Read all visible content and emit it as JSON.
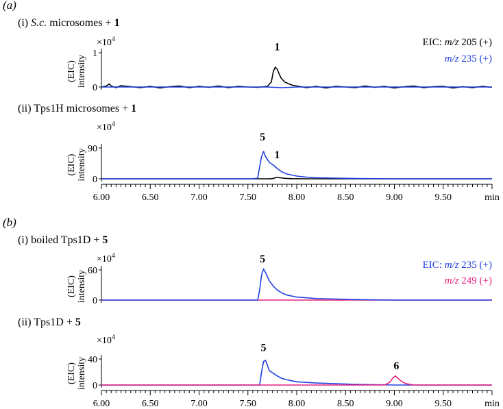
{
  "panels": [
    {
      "tag": "(a)",
      "subplots": [
        {
          "title_prefix": "(i) ",
          "title_italic": "S.c.",
          "title_rest": " microsomes + ",
          "title_bold": "1",
          "scale_text": "×10",
          "scale_exp": "4",
          "ylabel_top": "(EIC)",
          "ylabel_bottom": "intensity",
          "ytick_labels": [
            "1",
            "0"
          ],
          "legend": [
            {
              "prefix": "EIC: ",
              "mz": "m/z",
              "value": " 205 (+)",
              "color": "#000000"
            },
            {
              "prefix": "",
              "mz": "m/z",
              "value": " 235 (+)",
              "color": "#1f3fe0"
            }
          ],
          "annotations": [
            {
              "label": "1",
              "x": 7.8,
              "y": 1.07
            }
          ]
        },
        {
          "title_prefix": "(ii) Tps1H microsomes + ",
          "title_italic": "",
          "title_rest": "",
          "title_bold": "1",
          "scale_text": "×10",
          "scale_exp": "4",
          "ylabel_top": "(EIC)",
          "ylabel_bottom": "intensity",
          "ytick_labels": [
            "90",
            "0"
          ],
          "legend": [],
          "annotations": [
            {
              "label": "5",
              "x": 7.65,
              "y": 112
            },
            {
              "label": "1",
              "x": 7.8,
              "y": 60
            }
          ]
        }
      ]
    },
    {
      "tag": "(b)",
      "subplots": [
        {
          "title_prefix": "(i) boiled Tps1D + ",
          "title_italic": "",
          "title_rest": "",
          "title_bold": "5",
          "scale_text": "×10",
          "scale_exp": "4",
          "ylabel_top": "(EIC)",
          "ylabel_bottom": "intensity",
          "ytick_labels": [
            "60",
            "0"
          ],
          "legend": [
            {
              "prefix": "EIC: ",
              "mz": "m/z",
              "value": " 235 (+)",
              "color": "#1f3fe0"
            },
            {
              "prefix": "",
              "mz": "m/z",
              "value": " 249 (+)",
              "color": "#e8207c"
            }
          ],
          "annotations": [
            {
              "label": "5",
              "x": 7.65,
              "y": 75
            }
          ]
        },
        {
          "title_prefix": "(ii) Tps1D + ",
          "title_italic": "",
          "title_rest": "",
          "title_bold": "5",
          "scale_text": "×10",
          "scale_exp": "4",
          "ylabel_top": "(EIC)",
          "ylabel_bottom": "intensity",
          "ytick_labels": [
            "40",
            "0"
          ],
          "legend": [],
          "annotations": [
            {
              "label": "5",
              "x": 7.66,
              "y": 52
            },
            {
              "label": "6",
              "x": 9.02,
              "y": 24
            }
          ]
        }
      ]
    }
  ],
  "x_axis": {
    "tick_labels": [
      "6.00",
      "6.50",
      "7.00",
      "7.50",
      "8.00",
      "8.50",
      "9.00",
      "9.50"
    ],
    "unit": "min"
  },
  "chart_data": {
    "type": "line",
    "xlim": [
      6.0,
      10.0
    ],
    "x_unit": "min",
    "panels": [
      {
        "name": "(a)(i) S.c. microsomes + 1",
        "ylim": [
          -0.1,
          1.3
        ],
        "yticks": [
          0,
          1
        ],
        "series": [
          {
            "name": "m/z 205 (+)",
            "color": "#000000",
            "x": [
              6.0,
              6.05,
              6.08,
              6.1,
              6.15,
              6.2,
              6.3,
              6.4,
              6.5,
              6.6,
              6.7,
              6.8,
              6.9,
              7.0,
              7.1,
              7.2,
              7.3,
              7.4,
              7.5,
              7.6,
              7.7,
              7.74,
              7.76,
              7.78,
              7.8,
              7.82,
              7.84,
              7.88,
              7.92,
              7.96,
              8.0,
              8.1,
              8.2,
              8.3,
              8.4,
              8.5,
              8.6,
              8.7,
              8.8,
              8.9,
              9.0,
              9.1,
              9.2,
              9.3,
              9.4,
              9.5,
              9.6,
              9.7,
              9.8,
              9.9,
              10.0
            ],
            "y": [
              0.0,
              0.03,
              0.09,
              0.03,
              -0.02,
              0.04,
              0.01,
              -0.02,
              0.02,
              -0.03,
              0.01,
              0.03,
              -0.02,
              0.02,
              -0.01,
              0.03,
              -0.02,
              0.02,
              0.0,
              -0.01,
              0.02,
              0.15,
              0.45,
              0.58,
              0.52,
              0.38,
              0.26,
              0.14,
              0.09,
              0.05,
              0.03,
              -0.02,
              0.02,
              -0.03,
              0.02,
              0.0,
              -0.02,
              0.03,
              -0.01,
              0.02,
              -0.03,
              0.01,
              0.03,
              -0.02,
              0.01,
              0.02,
              -0.03,
              0.01,
              -0.02,
              0.02,
              -0.01
            ]
          },
          {
            "name": "m/z 235 (+)",
            "color": "#1f3fe0",
            "x": [
              6.0,
              7.0,
              7.7,
              7.85,
              8.0,
              9.0,
              10.0
            ],
            "y": [
              0.0,
              0.0,
              0.0,
              -0.02,
              0.0,
              0.0,
              0.0
            ]
          }
        ]
      },
      {
        "name": "(a)(ii) Tps1H microsomes + 1",
        "ylim": [
          -5,
          122
        ],
        "yticks": [
          0,
          90
        ],
        "series": [
          {
            "name": "m/z 205 (+)",
            "color": "#000000",
            "x": [
              6.0,
              7.7,
              7.75,
              7.78,
              7.8,
              7.83,
              7.88,
              7.95,
              8.1,
              10.0
            ],
            "y": [
              0,
              0,
              0.5,
              3,
              4,
              3,
              1.5,
              0.5,
              0,
              0
            ]
          },
          {
            "name": "m/z 235 (+)",
            "color": "#1f3fe0",
            "x": [
              6.0,
              7.55,
              7.6,
              7.62,
              7.64,
              7.66,
              7.68,
              7.72,
              7.76,
              7.8,
              7.85,
              7.9,
              8.0,
              8.1,
              8.2,
              8.4,
              8.6,
              9.0,
              10.0
            ],
            "y": [
              0,
              0,
              2,
              35,
              65,
              80,
              65,
              48,
              40,
              30,
              20,
              14,
              8,
              5,
              3,
              2,
              1,
              0,
              0
            ]
          }
        ]
      },
      {
        "name": "(b)(i) boiled Tps1D + 5",
        "ylim": [
          -4,
          85
        ],
        "yticks": [
          0,
          60
        ],
        "series": [
          {
            "name": "m/z 249 (+)",
            "color": "#e8207c",
            "x": [
              6.0,
              10.0
            ],
            "y": [
              0,
              0
            ]
          },
          {
            "name": "m/z 235 (+)",
            "color": "#1f3fe0",
            "x": [
              6.0,
              7.6,
              7.62,
              7.64,
              7.66,
              7.68,
              7.72,
              7.76,
              7.8,
              7.85,
              7.9,
              8.0,
              8.2,
              8.4,
              8.6,
              9.0,
              10.0
            ],
            "y": [
              0,
              0,
              20,
              50,
              62,
              55,
              38,
              28,
              20,
              14,
              10,
              6,
              3,
              2,
              1,
              0,
              0
            ]
          }
        ]
      },
      {
        "name": "(b)(ii) Tps1D + 5",
        "ylim": [
          -3,
          58
        ],
        "yticks": [
          0,
          40
        ],
        "series": [
          {
            "name": "m/z 235 (+)",
            "color": "#1f3fe0",
            "x": [
              6.0,
              7.62,
              7.64,
              7.66,
              7.68,
              7.7,
              7.72,
              7.76,
              7.8,
              7.85,
              7.9,
              8.0,
              8.2,
              8.4,
              8.6,
              9.0,
              10.0
            ],
            "y": [
              0,
              0,
              20,
              36,
              38,
              30,
              22,
              18,
              14,
              10,
              8,
              5,
              3,
              2,
              1,
              0,
              0
            ]
          },
          {
            "name": "m/z 249 (+)",
            "color": "#e8207c",
            "x": [
              6.0,
              8.9,
              8.95,
              8.98,
              9.01,
              9.04,
              9.08,
              9.12,
              9.2,
              10.0
            ],
            "y": [
              0,
              0,
              4,
              10,
              14,
              10,
              5,
              2,
              0,
              0
            ]
          }
        ]
      }
    ]
  }
}
